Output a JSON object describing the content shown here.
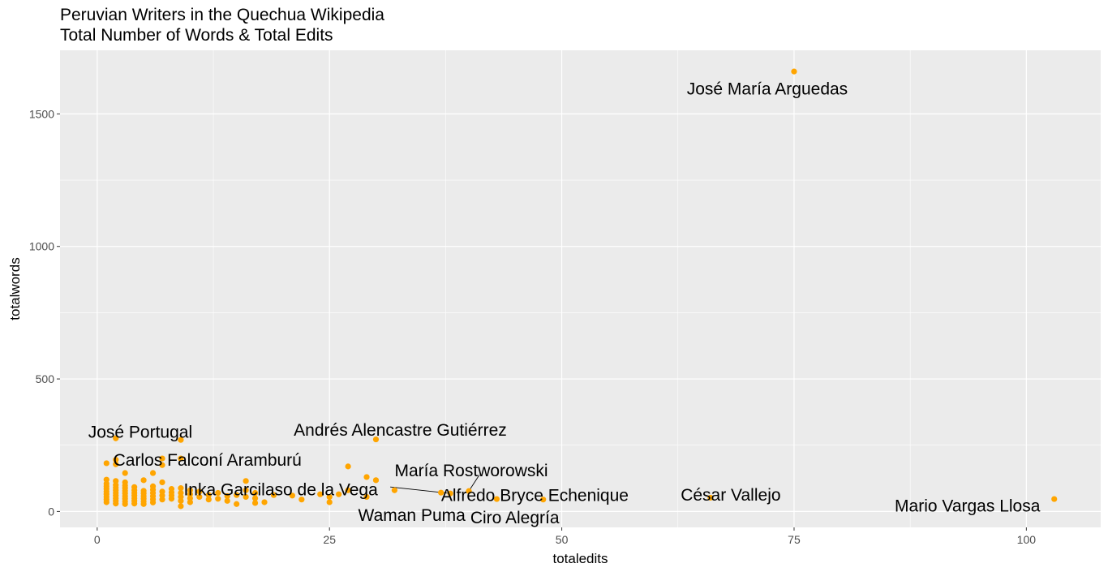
{
  "chart_data": {
    "type": "scatter",
    "title": "Peruvian Writers in the Quechua Wikipedia",
    "subtitle": "Total Number of Words & Total Edits",
    "xlabel": "totaledits",
    "ylabel": "totalwords",
    "xlim": [
      -4,
      108
    ],
    "ylim": [
      -60,
      1740
    ],
    "x_ticks": [
      0,
      25,
      50,
      75,
      100
    ],
    "x_tick_labels": [
      "0",
      "25",
      "50",
      "75",
      "100"
    ],
    "y_ticks": [
      0,
      500,
      1000,
      1500
    ],
    "y_tick_labels": [
      "0",
      "500",
      "1000",
      "1500"
    ],
    "grid": true,
    "legend": "none",
    "point_color": "#FFA500",
    "panel_color": "#EBEBEB",
    "grid_color": "#FFFFFF",
    "labeled_points": [
      {
        "label": "José María Arguedas",
        "x": 75,
        "y": 1660
      },
      {
        "label": "Mario Vargas Llosa",
        "x": 103,
        "y": 47
      },
      {
        "label": "César Vallejo",
        "x": 66,
        "y": 52
      },
      {
        "label": "Ciro Alegría",
        "x": 48,
        "y": 45
      },
      {
        "label": "Alfredo Bryce Echenique",
        "x": 43,
        "y": 47
      },
      {
        "label": "María Rostworowski",
        "x": 40,
        "y": 77
      },
      {
        "label": "Waman Puma",
        "x": 37,
        "y": 71
      },
      {
        "label": "Inka Garcilaso de la Vega",
        "x": 38,
        "y": 68
      },
      {
        "label": "Andrés Alencastre Gutiérrez",
        "x": 30,
        "y": 272
      },
      {
        "label": "José Portugal",
        "x": 9,
        "y": 270
      },
      {
        "label": "Carlos Falconí Aramburú",
        "x": 2,
        "y": 276
      }
    ],
    "points": [
      {
        "x": 1,
        "y": 120
      },
      {
        "x": 1,
        "y": 105
      },
      {
        "x": 1,
        "y": 95
      },
      {
        "x": 1,
        "y": 85
      },
      {
        "x": 1,
        "y": 75
      },
      {
        "x": 1,
        "y": 65
      },
      {
        "x": 1,
        "y": 55
      },
      {
        "x": 1,
        "y": 45
      },
      {
        "x": 1,
        "y": 35
      },
      {
        "x": 1,
        "y": 182
      },
      {
        "x": 2,
        "y": 195
      },
      {
        "x": 2,
        "y": 178
      },
      {
        "x": 2,
        "y": 115
      },
      {
        "x": 2,
        "y": 100
      },
      {
        "x": 2,
        "y": 90
      },
      {
        "x": 2,
        "y": 80
      },
      {
        "x": 2,
        "y": 70
      },
      {
        "x": 2,
        "y": 60
      },
      {
        "x": 2,
        "y": 50
      },
      {
        "x": 2,
        "y": 40
      },
      {
        "x": 2,
        "y": 30
      },
      {
        "x": 3,
        "y": 145
      },
      {
        "x": 3,
        "y": 110
      },
      {
        "x": 3,
        "y": 98
      },
      {
        "x": 3,
        "y": 88
      },
      {
        "x": 3,
        "y": 78
      },
      {
        "x": 3,
        "y": 68
      },
      {
        "x": 3,
        "y": 58
      },
      {
        "x": 3,
        "y": 48
      },
      {
        "x": 3,
        "y": 38
      },
      {
        "x": 3,
        "y": 28
      },
      {
        "x": 4,
        "y": 92
      },
      {
        "x": 4,
        "y": 80
      },
      {
        "x": 4,
        "y": 70
      },
      {
        "x": 4,
        "y": 60
      },
      {
        "x": 4,
        "y": 50
      },
      {
        "x": 4,
        "y": 40
      },
      {
        "x": 4,
        "y": 30
      },
      {
        "x": 5,
        "y": 78
      },
      {
        "x": 5,
        "y": 68
      },
      {
        "x": 5,
        "y": 58
      },
      {
        "x": 5,
        "y": 48
      },
      {
        "x": 5,
        "y": 38
      },
      {
        "x": 5,
        "y": 28
      },
      {
        "x": 5,
        "y": 118
      },
      {
        "x": 6,
        "y": 145
      },
      {
        "x": 6,
        "y": 95
      },
      {
        "x": 6,
        "y": 82
      },
      {
        "x": 6,
        "y": 70
      },
      {
        "x": 6,
        "y": 58
      },
      {
        "x": 6,
        "y": 46
      },
      {
        "x": 6,
        "y": 34
      },
      {
        "x": 7,
        "y": 200
      },
      {
        "x": 7,
        "y": 175
      },
      {
        "x": 7,
        "y": 110
      },
      {
        "x": 7,
        "y": 75
      },
      {
        "x": 7,
        "y": 60
      },
      {
        "x": 7,
        "y": 45
      },
      {
        "x": 8,
        "y": 85
      },
      {
        "x": 8,
        "y": 72
      },
      {
        "x": 8,
        "y": 60
      },
      {
        "x": 8,
        "y": 48
      },
      {
        "x": 9,
        "y": 200
      },
      {
        "x": 9,
        "y": 88
      },
      {
        "x": 9,
        "y": 70
      },
      {
        "x": 9,
        "y": 55
      },
      {
        "x": 9,
        "y": 40
      },
      {
        "x": 9,
        "y": 20
      },
      {
        "x": 10,
        "y": 80
      },
      {
        "x": 10,
        "y": 65
      },
      {
        "x": 10,
        "y": 50
      },
      {
        "x": 10,
        "y": 35
      },
      {
        "x": 11,
        "y": 75
      },
      {
        "x": 11,
        "y": 55
      },
      {
        "x": 12,
        "y": 62
      },
      {
        "x": 12,
        "y": 45
      },
      {
        "x": 13,
        "y": 70
      },
      {
        "x": 13,
        "y": 48
      },
      {
        "x": 14,
        "y": 58
      },
      {
        "x": 14,
        "y": 40
      },
      {
        "x": 15,
        "y": 62
      },
      {
        "x": 15,
        "y": 28
      },
      {
        "x": 16,
        "y": 115
      },
      {
        "x": 16,
        "y": 80
      },
      {
        "x": 16,
        "y": 55
      },
      {
        "x": 17,
        "y": 70
      },
      {
        "x": 17,
        "y": 50
      },
      {
        "x": 17,
        "y": 32
      },
      {
        "x": 18,
        "y": 35
      },
      {
        "x": 19,
        "y": 62
      },
      {
        "x": 21,
        "y": 60
      },
      {
        "x": 22,
        "y": 45
      },
      {
        "x": 24,
        "y": 65
      },
      {
        "x": 25,
        "y": 55
      },
      {
        "x": 25,
        "y": 35
      },
      {
        "x": 26,
        "y": 65
      },
      {
        "x": 27,
        "y": 170
      },
      {
        "x": 27,
        "y": 80
      },
      {
        "x": 29,
        "y": 130
      },
      {
        "x": 29,
        "y": 55
      },
      {
        "x": 30,
        "y": 118
      },
      {
        "x": 32,
        "y": 80
      }
    ]
  }
}
